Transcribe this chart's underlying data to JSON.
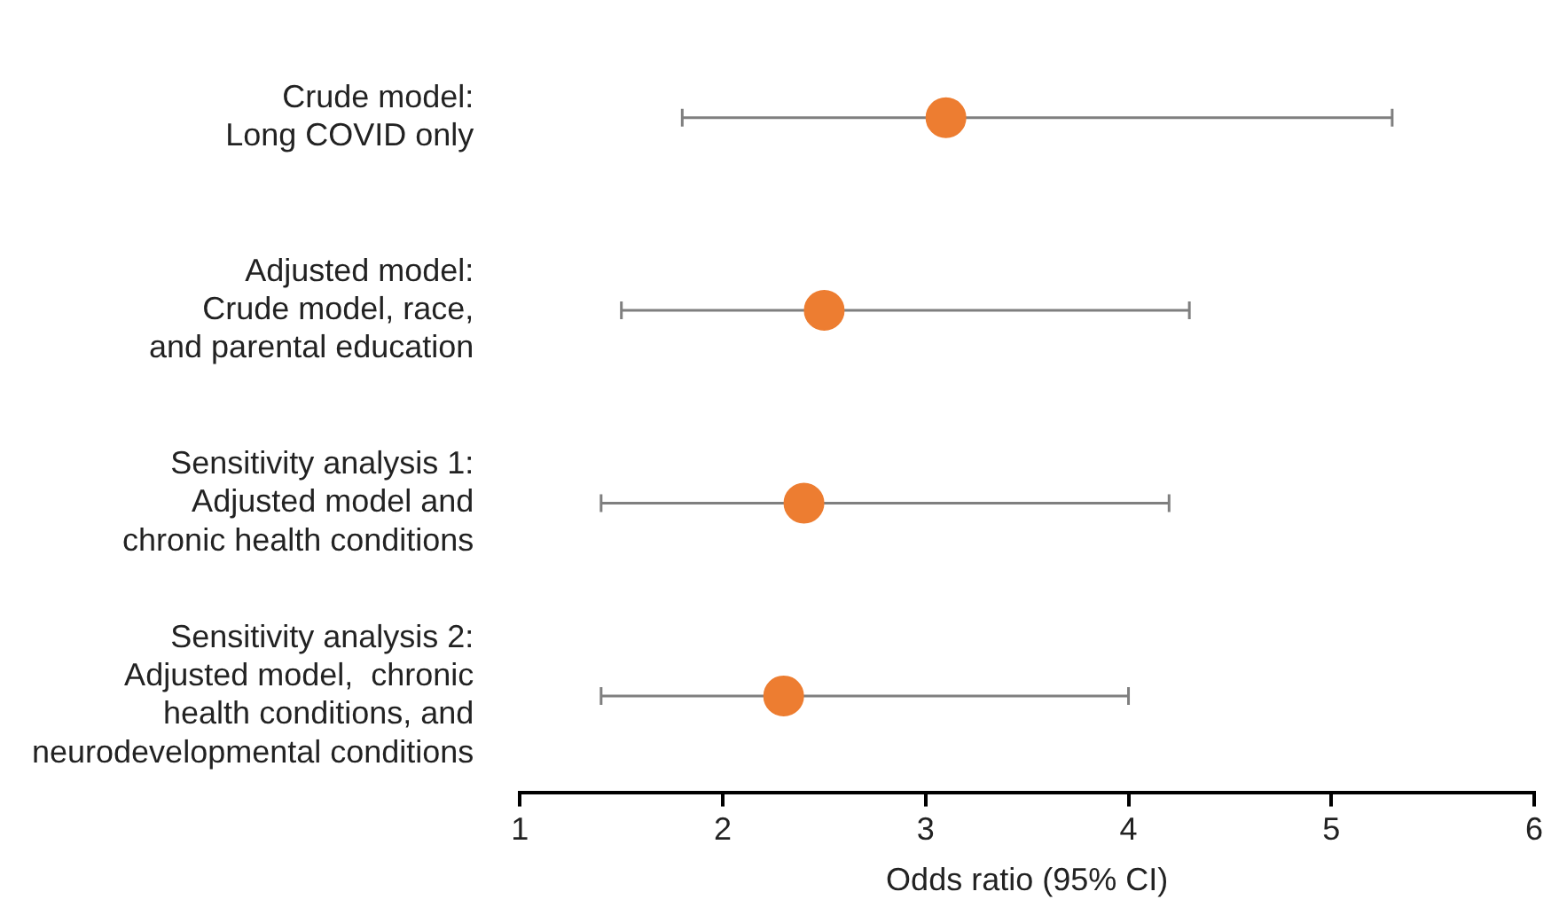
{
  "chart_data": {
    "type": "scatter",
    "orientation": "horizontal",
    "xlabel": "Odds ratio (95% CI)",
    "categories": [
      "Crude model:\nLong COVID only",
      "Adjusted model:\nCrude model, race,\nand parental education",
      "Sensitivity analysis 1:\nAdjusted model and\nchronic health conditions",
      "Sensitivity analysis 2:\nAdjusted model,  chronic\nhealth conditions, and\nneurodevelopmental conditions"
    ],
    "series": [
      {
        "color": "#ed7d31",
        "values": [
          3.1,
          2.5,
          2.4,
          2.3
        ],
        "errors": [
          [
            1.8,
            5.3
          ],
          [
            1.5,
            4.3
          ],
          [
            1.4,
            4.2
          ],
          [
            1.4,
            4.0
          ]
        ]
      }
    ],
    "xlim": [
      1,
      6
    ],
    "xticks": [
      1,
      2,
      3,
      4,
      5,
      6
    ],
    "grid": false,
    "legend": false,
    "marker": "circle"
  }
}
